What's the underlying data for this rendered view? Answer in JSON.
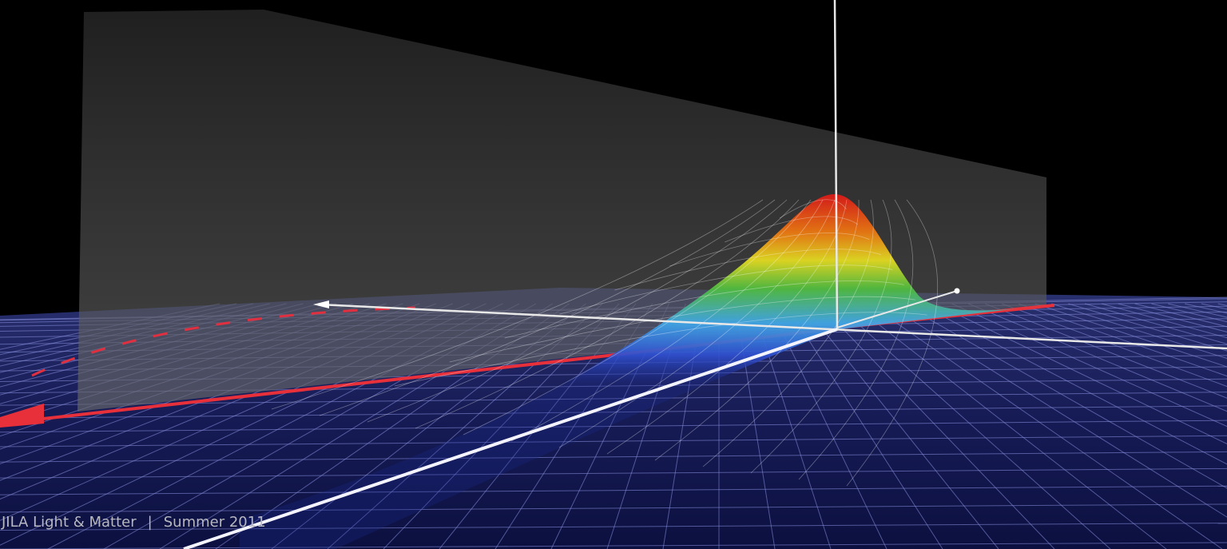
{
  "footer": {
    "publication": "JILA Light & Matter",
    "separator": "|",
    "issue": "Summer 2011"
  }
}
